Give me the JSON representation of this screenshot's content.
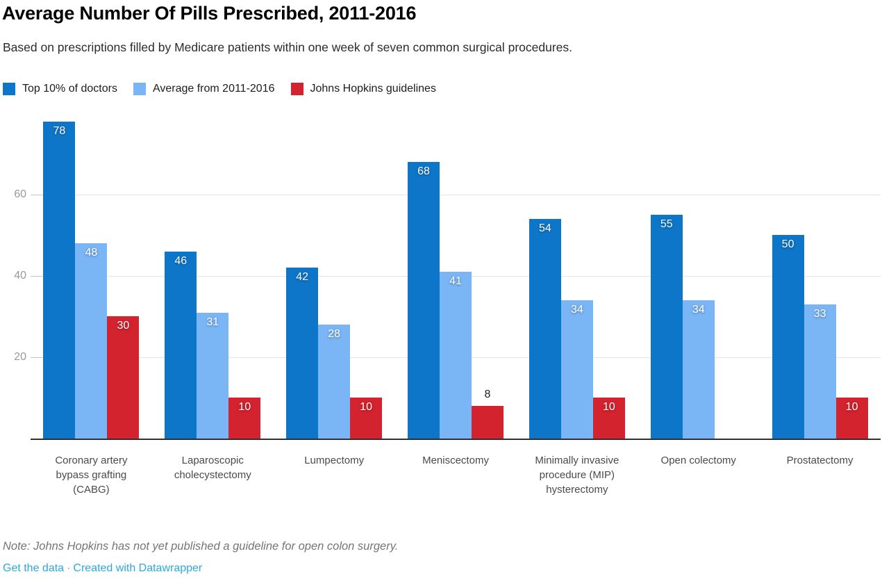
{
  "chart_data": {
    "type": "bar",
    "title": "Average Number Of Pills Prescribed, 2011-2016",
    "subtitle": "Based on prescriptions filled by Medicare patients within one week of seven common surgical procedures.",
    "categories": [
      "Coronary artery bypass grafting (CABG)",
      "Laparoscopic cholecystectomy",
      "Lumpectomy",
      "Meniscectomy",
      "Minimally invasive procedure (MIP) hysterectomy",
      "Open colectomy",
      "Prostatectomy"
    ],
    "series": [
      {
        "name": "Top 10% of doctors",
        "color": "#0e76c8",
        "values": [
          78,
          46,
          42,
          68,
          54,
          55,
          50
        ]
      },
      {
        "name": "Average from 2011-2016",
        "color": "#7ab5f5",
        "values": [
          48,
          31,
          28,
          41,
          34,
          34,
          33
        ]
      },
      {
        "name": "Johns Hopkins guidelines",
        "color": "#d2232f",
        "values": [
          30,
          10,
          10,
          8,
          10,
          null,
          10
        ]
      }
    ],
    "yticks": [
      20,
      40,
      60
    ],
    "ylim": [
      0,
      80
    ],
    "grid": true,
    "legend_position": "top",
    "value_labels": true
  },
  "footer": {
    "note": "Note: Johns Hopkins has not yet published a guideline for open colon surgery.",
    "separator": "·",
    "links": [
      {
        "label": "Get the data"
      },
      {
        "label": "Created with Datawrapper"
      }
    ]
  },
  "colors": {
    "link": "#2fa7db",
    "axis_line": "#303030",
    "gridline": "#e4e4e4",
    "tick": "#c3c3c3",
    "y_label": "#999999",
    "x_label": "#4a4a4a",
    "note": "#757575"
  }
}
